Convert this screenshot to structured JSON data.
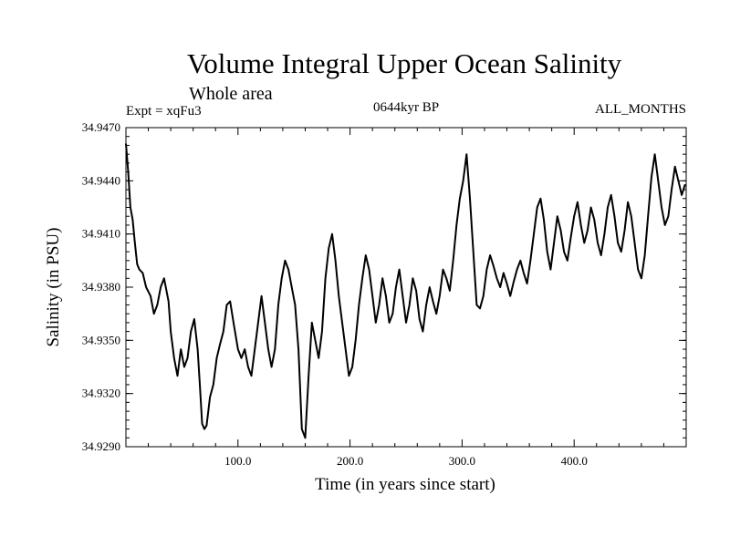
{
  "chart_data": {
    "type": "line",
    "title": "Volume Integral Upper Ocean Salinity",
    "subtitle": "Whole area",
    "experiment_label": "Expt = xqFu3",
    "period_label": "0644kyr BP",
    "months_label": "ALL_MONTHS",
    "xlabel": "Time (in years since start)",
    "ylabel": "Salinity (in PSU)",
    "xlim": [
      0,
      500
    ],
    "ylim": [
      34.929,
      34.947
    ],
    "x_ticks": [
      100,
      200,
      300,
      400
    ],
    "x_tick_labels": [
      "100.0",
      "200.0",
      "300.0",
      "400.0"
    ],
    "y_ticks": [
      34.929,
      34.932,
      34.935,
      34.938,
      34.941,
      34.944,
      34.947
    ],
    "y_tick_labels": [
      "34.9290",
      "34.9320",
      "34.9350",
      "34.9380",
      "34.9410",
      "34.9440",
      "34.9470"
    ],
    "grid": false,
    "series": [
      {
        "name": "Salinity",
        "color": "#000000",
        "x": [
          0,
          2,
          4,
          6,
          8,
          10,
          12,
          15,
          18,
          22,
          25,
          28,
          31,
          34,
          38,
          40,
          43,
          46,
          49,
          52,
          55,
          58,
          61,
          64,
          66,
          68,
          70,
          72,
          75,
          78,
          81,
          84,
          87,
          90,
          93,
          96,
          100,
          103,
          106,
          109,
          112,
          115,
          118,
          121,
          124,
          127,
          130,
          133,
          136,
          139,
          142,
          145,
          148,
          151,
          154,
          157,
          160,
          163,
          166,
          169,
          172,
          175,
          178,
          181,
          184,
          187,
          190,
          193,
          196,
          199,
          202,
          205,
          208,
          211,
          214,
          217,
          220,
          223,
          226,
          229,
          232,
          235,
          238,
          241,
          244,
          247,
          250,
          253,
          256,
          259,
          262,
          265,
          268,
          271,
          274,
          277,
          280,
          283,
          286,
          289,
          292,
          295,
          298,
          301,
          304,
          307,
          310,
          313,
          316,
          319,
          322,
          325,
          328,
          331,
          334,
          337,
          340,
          343,
          346,
          349,
          352,
          355,
          358,
          361,
          364,
          367,
          370,
          373,
          376,
          379,
          382,
          385,
          388,
          391,
          394,
          397,
          400,
          403,
          406,
          409,
          412,
          415,
          418,
          421,
          424,
          427,
          430,
          433,
          436,
          439,
          442,
          445,
          448,
          451,
          454,
          457,
          460,
          463,
          466,
          469,
          472,
          475,
          478,
          481,
          484,
          487,
          490,
          493,
          496,
          499
        ],
        "y": [
          34.9461,
          34.9445,
          34.9425,
          34.9418,
          34.9405,
          34.9393,
          34.939,
          34.9388,
          34.938,
          34.9375,
          34.9365,
          34.937,
          34.938,
          34.9385,
          34.9372,
          34.9355,
          34.934,
          34.933,
          34.9345,
          34.9335,
          34.934,
          34.9355,
          34.9362,
          34.9345,
          34.9325,
          34.9303,
          34.93,
          34.9302,
          34.9318,
          34.9325,
          34.934,
          34.9348,
          34.9355,
          34.937,
          34.9372,
          34.936,
          34.9345,
          34.934,
          34.9345,
          34.9335,
          34.933,
          34.9345,
          34.936,
          34.9375,
          34.936,
          34.9345,
          34.9335,
          34.9345,
          34.937,
          34.9385,
          34.9395,
          34.939,
          34.938,
          34.937,
          34.9345,
          34.93,
          34.9295,
          34.933,
          34.936,
          34.935,
          34.934,
          34.9355,
          34.9385,
          34.9402,
          34.941,
          34.9395,
          34.9375,
          34.936,
          34.9345,
          34.933,
          34.9335,
          34.935,
          34.937,
          34.9385,
          34.9398,
          34.939,
          34.9375,
          34.936,
          34.937,
          34.9385,
          34.9375,
          34.936,
          34.9365,
          34.938,
          34.939,
          34.9375,
          34.936,
          34.937,
          34.9385,
          34.9378,
          34.9362,
          34.9355,
          34.937,
          34.938,
          34.9372,
          34.9365,
          34.9375,
          34.939,
          34.9385,
          34.9378,
          34.9395,
          34.9415,
          34.943,
          34.944,
          34.9455,
          34.943,
          34.94,
          34.937,
          34.9368,
          34.9375,
          34.939,
          34.9398,
          34.9392,
          34.9385,
          34.938,
          34.9388,
          34.9382,
          34.9375,
          34.9383,
          34.939,
          34.9395,
          34.9388,
          34.9382,
          34.9395,
          34.941,
          34.9425,
          34.943,
          34.9418,
          34.94,
          34.939,
          34.9405,
          34.942,
          34.9412,
          34.94,
          34.9395,
          34.9408,
          34.942,
          34.9428,
          34.9415,
          34.9405,
          34.9412,
          34.9425,
          34.9418,
          34.9405,
          34.9398,
          34.941,
          34.9425,
          34.9432,
          34.942,
          34.9405,
          34.94,
          34.9412,
          34.9428,
          34.942,
          34.9405,
          34.939,
          34.9385,
          34.9398,
          34.942,
          34.9442,
          34.9455,
          34.944,
          34.9425,
          34.9415,
          34.942,
          34.9435,
          34.9448,
          34.944,
          34.9432,
          34.9438
        ]
      }
    ]
  }
}
